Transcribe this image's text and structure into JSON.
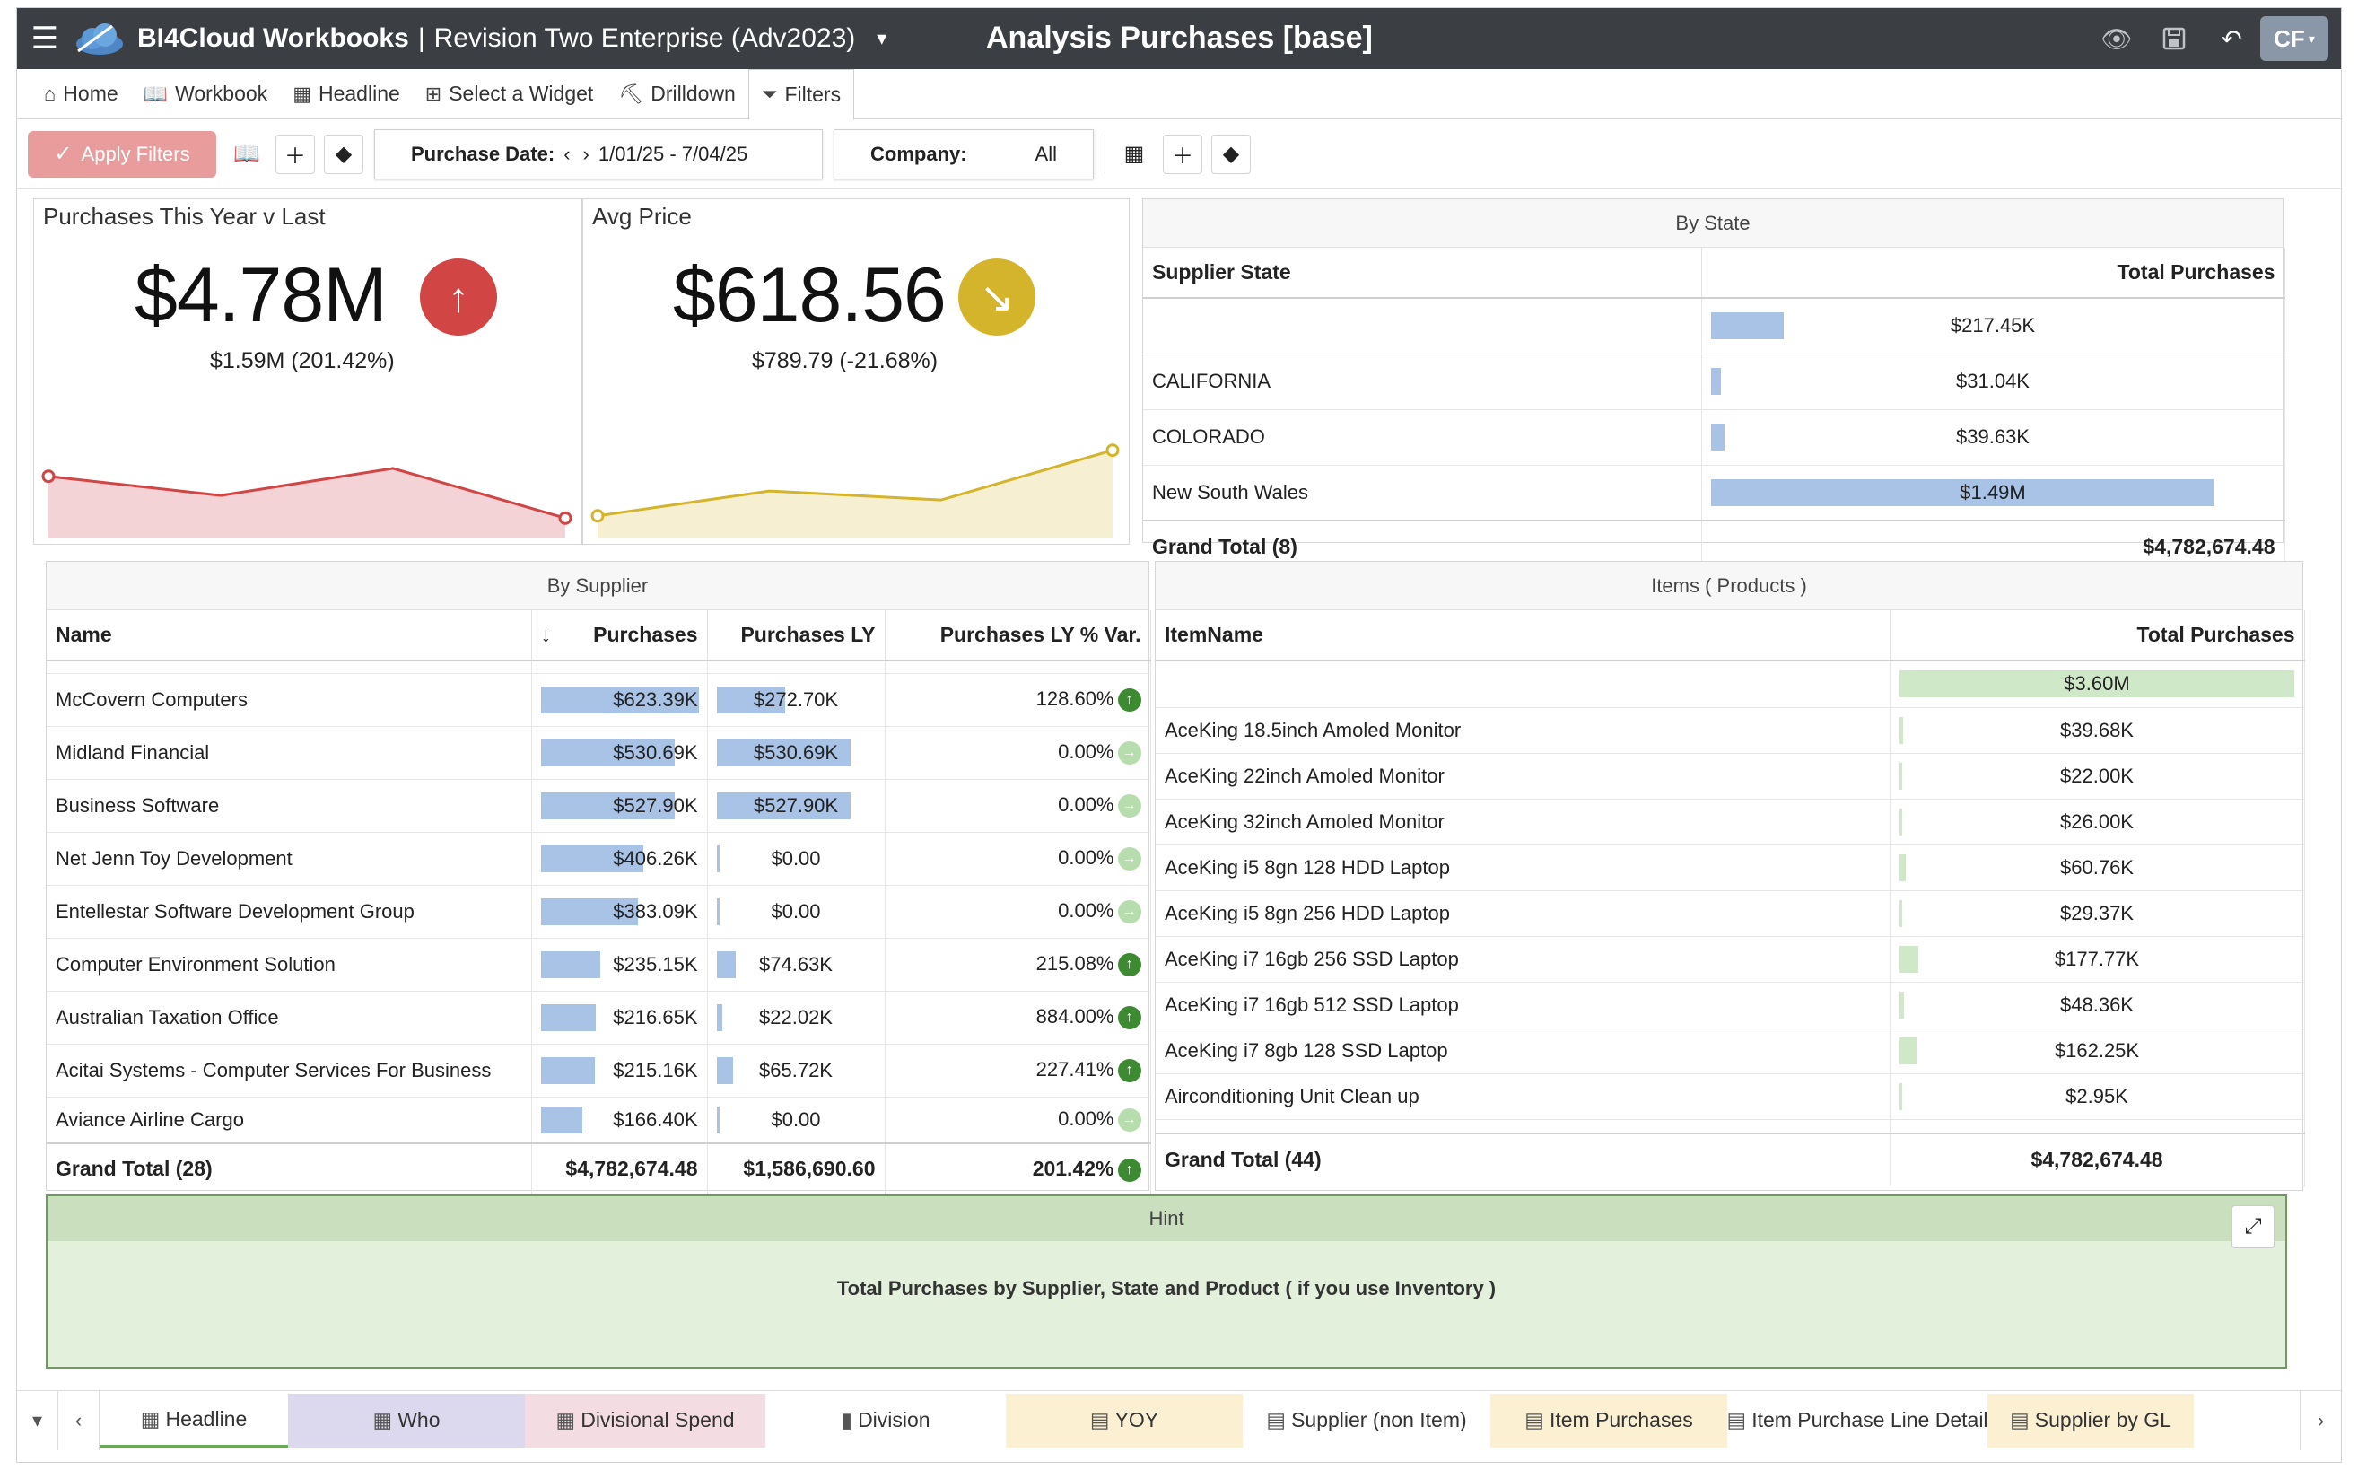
{
  "titlebar": {
    "app_name": "BI4Cloud Workbooks",
    "separator": "|",
    "revision": "Revision Two Enterprise (Adv2023)",
    "page_title": "Analysis Purchases [base]",
    "user_initials": "CF"
  },
  "nav": {
    "tabs": [
      {
        "label": "Home",
        "icon": "home-icon"
      },
      {
        "label": "Workbook",
        "icon": "book-icon"
      },
      {
        "label": "Headline",
        "icon": "grid-icon"
      },
      {
        "label": "Select a Widget",
        "icon": "widget-icon"
      },
      {
        "label": "Drilldown",
        "icon": "drilldown-icon"
      },
      {
        "label": "Filters",
        "icon": "filter-icon"
      }
    ],
    "active_tab": "Filters"
  },
  "filters": {
    "apply_label": "Apply Filters",
    "purchase_date_label": "Purchase Date:",
    "purchase_date_value": "1/01/25 - 7/04/25",
    "company_label": "Company:",
    "company_value": "All"
  },
  "kpi": [
    {
      "title": "Purchases This Year v Last",
      "value": "$4.78M",
      "subtitle": "$1.59M (201.42%)",
      "trend": "up",
      "color": "#d24545",
      "spark": [
        0.55,
        0.38,
        0.62,
        0.18
      ]
    },
    {
      "title": "Avg Price",
      "value": "$618.56",
      "subtitle": "$789.79 (-21.68%)",
      "trend": "down",
      "color": "#d4b42a",
      "spark": [
        0.2,
        0.42,
        0.34,
        0.78
      ]
    }
  ],
  "by_state": {
    "title": "By State",
    "columns": [
      "Supplier State",
      "Total Purchases"
    ],
    "rows": [
      {
        "state": "",
        "total": "$217.45K",
        "pct": 0.146
      },
      {
        "state": "CALIFORNIA",
        "total": "$31.04K",
        "pct": 0.021
      },
      {
        "state": "COLORADO",
        "total": "$39.63K",
        "pct": 0.027
      },
      {
        "state": "New South Wales",
        "total": "$1.49M",
        "pct": 1.0
      }
    ],
    "grand_total_label": "Grand Total (8)",
    "grand_total": "$4,782,674.48"
  },
  "by_supplier": {
    "title": "By Supplier",
    "columns": [
      "Name",
      "Purchases",
      "Purchases LY",
      "Purchases LY % Var."
    ],
    "rows": [
      {
        "name": "McCovern Computers",
        "purchases": "$623.39K",
        "p_pct": 1.0,
        "ly": "$272.70K",
        "ly_pct": 0.437,
        "var": "128.60%",
        "dir": "up"
      },
      {
        "name": "Midland Financial",
        "purchases": "$530.69K",
        "p_pct": 0.851,
        "ly": "$530.69K",
        "ly_pct": 0.851,
        "var": "0.00%",
        "dir": "flat"
      },
      {
        "name": "Business Software",
        "purchases": "$527.90K",
        "p_pct": 0.847,
        "ly": "$527.90K",
        "ly_pct": 0.847,
        "var": "0.00%",
        "dir": "flat"
      },
      {
        "name": "Net Jenn Toy Development",
        "purchases": "$406.26K",
        "p_pct": 0.652,
        "ly": "$0.00",
        "ly_pct": 0.0,
        "var": "0.00%",
        "dir": "flat"
      },
      {
        "name": "Entellestar Software Development Group",
        "purchases": "$383.09K",
        "p_pct": 0.615,
        "ly": "$0.00",
        "ly_pct": 0.0,
        "var": "0.00%",
        "dir": "flat"
      },
      {
        "name": "Computer Environment Solution",
        "purchases": "$235.15K",
        "p_pct": 0.377,
        "ly": "$74.63K",
        "ly_pct": 0.12,
        "var": "215.08%",
        "dir": "up"
      },
      {
        "name": "Australian Taxation Office",
        "purchases": "$216.65K",
        "p_pct": 0.348,
        "ly": "$22.02K",
        "ly_pct": 0.035,
        "var": "884.00%",
        "dir": "up"
      },
      {
        "name": "Acitai Systems - Computer Services For Business",
        "purchases": "$215.16K",
        "p_pct": 0.345,
        "ly": "$65.72K",
        "ly_pct": 0.105,
        "var": "227.41%",
        "dir": "up"
      },
      {
        "name": "Aviance Airline Cargo",
        "purchases": "$166.40K",
        "p_pct": 0.267,
        "ly": "$0.00",
        "ly_pct": 0.0,
        "var": "0.00%",
        "dir": "flat"
      }
    ],
    "grand_total_label": "Grand Total (28)",
    "grand_total_purchases": "$4,782,674.48",
    "grand_total_ly": "$1,586,690.60",
    "grand_total_var": "201.42%"
  },
  "items": {
    "title": "Items ( Products )",
    "columns": [
      "ItemName",
      "Total Purchases"
    ],
    "rows": [
      {
        "name": "",
        "total": "$3.60M",
        "pct": 1.0
      },
      {
        "name": "AceKing 18.5inch Amoled Monitor",
        "total": "$39.68K",
        "pct": 0.011
      },
      {
        "name": "AceKing 22inch Amoled Monitor",
        "total": "$22.00K",
        "pct": 0.006
      },
      {
        "name": "AceKing 32inch Amoled Monitor",
        "total": "$26.00K",
        "pct": 0.007
      },
      {
        "name": "AceKing i5 8gn 128 HDD Laptop",
        "total": "$60.76K",
        "pct": 0.017
      },
      {
        "name": "AceKing i5 8gn 256 HDD Laptop",
        "total": "$29.37K",
        "pct": 0.008
      },
      {
        "name": "AceKing i7 16gb 256 SSD Laptop",
        "total": "$177.77K",
        "pct": 0.049
      },
      {
        "name": "AceKing i7 16gb 512 SSD Laptop",
        "total": "$48.36K",
        "pct": 0.013
      },
      {
        "name": "AceKing i7 8gb 128 SSD Laptop",
        "total": "$162.25K",
        "pct": 0.045
      },
      {
        "name": "Airconditioning Unit Clean up",
        "total": "$2.95K",
        "pct": 0.001
      }
    ],
    "grand_total_label": "Grand Total (44)",
    "grand_total": "$4,782,674.48"
  },
  "hint": {
    "title": "Hint",
    "body": "Total Purchases by Supplier, State and Product ( if you use Inventory )"
  },
  "bottom_tabs": [
    {
      "label": "Headline",
      "icon": "grid-icon",
      "bg": "#ffffff",
      "active": true
    },
    {
      "label": "Who",
      "icon": "grid-icon",
      "bg": "#dcd8ee",
      "active": false
    },
    {
      "label": "Divisional Spend",
      "icon": "grid-icon",
      "bg": "#f3dde3",
      "active": false
    },
    {
      "label": "Division",
      "icon": "bar-chart-icon",
      "bg": "#ffffff",
      "active": false
    },
    {
      "label": "YOY",
      "icon": "table-icon",
      "bg": "#fbf0d2",
      "active": false
    },
    {
      "label": "Supplier (non Item)",
      "icon": "table-icon",
      "bg": "#ffffff",
      "active": false
    },
    {
      "label": "Item Purchases",
      "icon": "table-icon",
      "bg": "#fbf0d2",
      "active": false
    },
    {
      "label": "Item Purchase Line Detail",
      "icon": "table-icon",
      "bg": "#ffffff",
      "active": false
    },
    {
      "label": "Supplier by GL",
      "icon": "table-icon",
      "bg": "#fbf0d2",
      "active": false
    }
  ],
  "colors": {
    "titlebar": "#3b3f44",
    "apply_button": "#e99c9c",
    "bar_blue": "#a8c3e6",
    "bar_green": "#cfe8c8",
    "hint_bg": "#e2f0dc"
  }
}
